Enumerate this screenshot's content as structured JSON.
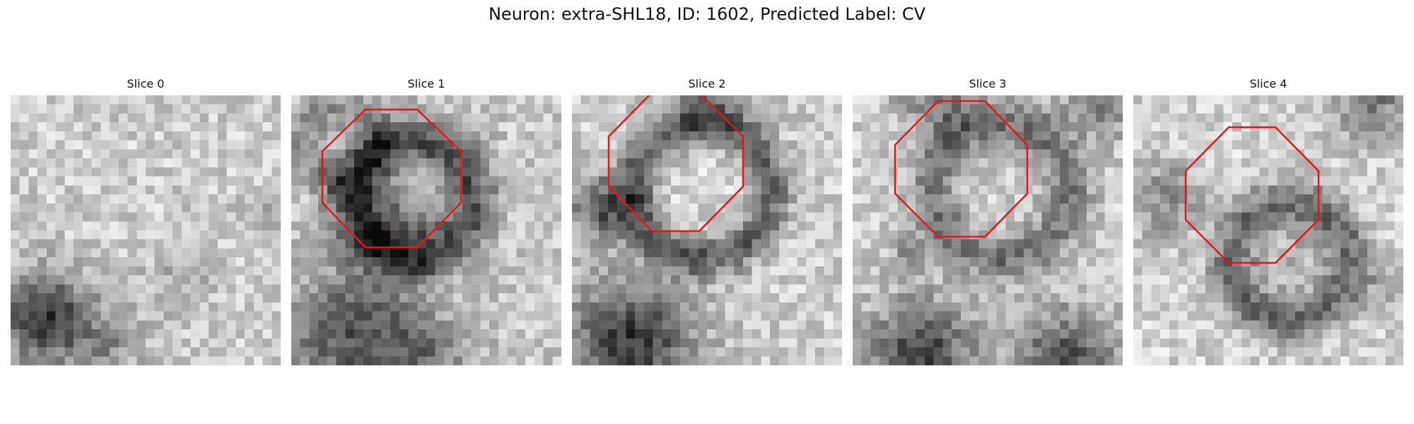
{
  "figure": {
    "title": "Neuron: extra-SHL18, ID: 1602, Predicted Label: CV",
    "outline_color": "#e8141c",
    "slices": [
      {
        "title": "Slice 0",
        "has_outline": false
      },
      {
        "title": "Slice 1",
        "has_outline": true
      },
      {
        "title": "Slice 2",
        "has_outline": true
      },
      {
        "title": "Slice 3",
        "has_outline": true
      },
      {
        "title": "Slice 4",
        "has_outline": true
      }
    ]
  }
}
